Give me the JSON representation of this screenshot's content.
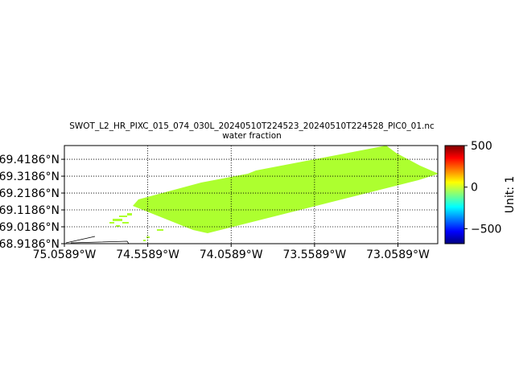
{
  "figure": {
    "title_line1": "SWOT_L2_HR_PIXC_015_074_030L_20240510T224523_20240510T224528_PIC0_01.nc",
    "title_line2": "water fraction"
  },
  "map": {
    "swath_color": "#adff2f",
    "y_ticks": [
      "69.4186°N",
      "69.3186°N",
      "69.2186°N",
      "69.1186°N",
      "69.0186°N",
      "68.9186°N"
    ],
    "x_ticks": [
      "75.0589°W",
      "74.5589°W",
      "74.0589°W",
      "73.5589°W",
      "73.0589°W"
    ],
    "lon_range": [
      -75.0589,
      -72.82
    ],
    "lat_range": [
      68.9186,
      69.5
    ]
  },
  "colorbar": {
    "label": "Unit: 1",
    "ticks": [
      "500",
      "0",
      "−500"
    ],
    "range": [
      -680,
      500
    ],
    "colors": [
      "#00007f",
      "#0000ff",
      "#007fff",
      "#00ffff",
      "#7fff7f",
      "#ffff00",
      "#ff7f00",
      "#ff0000",
      "#7f0000"
    ]
  },
  "chart_data": {
    "type": "map",
    "title": "SWOT_L2_HR_PIXC_015_074_030L_20240510T224523_20240510T224528_PIC0_01.nc water fraction",
    "variable": "water fraction",
    "units": "1",
    "color_range": [
      -680,
      500
    ],
    "lon_range": [
      -75.0589,
      -72.82
    ],
    "lat_range": [
      68.9186,
      69.5
    ]
  }
}
